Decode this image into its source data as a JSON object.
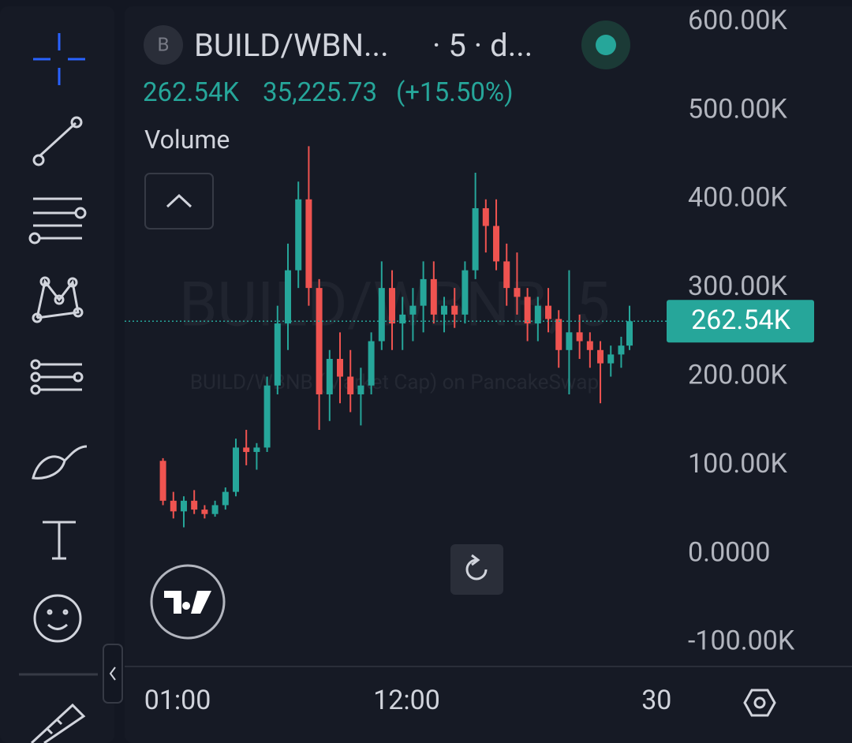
{
  "header": {
    "symbol_badge": "B",
    "symbol": "BUILD/WBN...",
    "interval": "· 5 · d...",
    "price": "262.54K",
    "change": "35,225.73",
    "change_pct": "(+15.50%)",
    "indicator": "Volume"
  },
  "watermark": {
    "title": "BUILD/WBNB, 5",
    "subtitle": "BUILD/WBNB (Market Cap) on PancakeSwap"
  },
  "chart_data": {
    "type": "candlestick",
    "x": [
      0.3,
      0.8,
      1.3,
      1.8,
      2.3,
      2.8,
      3.3,
      3.8,
      4.3,
      4.8,
      5.3,
      5.8,
      6.3,
      6.8,
      7.3,
      7.8,
      8.3,
      8.8,
      9.3,
      9.8,
      10.3,
      10.8,
      11.3,
      11.8,
      12.3,
      12.8,
      13.3,
      13.8,
      14.3,
      14.8,
      15.3,
      15.8,
      16.3,
      16.8,
      17.3,
      17.8,
      18.3,
      18.8,
      19.3,
      19.8,
      20.3,
      20.8,
      21.3,
      21.8,
      22.3,
      22.7
    ],
    "open": [
      105000,
      60000,
      48000,
      60000,
      50000,
      45000,
      55000,
      70000,
      120000,
      115000,
      120000,
      190000,
      260000,
      320000,
      400000,
      300000,
      180000,
      220000,
      200000,
      180000,
      190000,
      240000,
      300000,
      260000,
      270000,
      280000,
      310000,
      270000,
      280000,
      270000,
      320000,
      390000,
      370000,
      330000,
      300000,
      290000,
      260000,
      280000,
      265000,
      230000,
      250000,
      240000,
      230000,
      215000,
      225000,
      235000
    ],
    "high": [
      108000,
      70000,
      65000,
      72000,
      55000,
      60000,
      75000,
      130000,
      140000,
      125000,
      200000,
      280000,
      350000,
      420000,
      460000,
      310000,
      230000,
      250000,
      230000,
      210000,
      250000,
      330000,
      320000,
      290000,
      300000,
      330000,
      330000,
      290000,
      300000,
      330000,
      430000,
      400000,
      400000,
      350000,
      340000,
      300000,
      290000,
      300000,
      275000,
      320000,
      270000,
      250000,
      240000,
      235000,
      245000,
      280000
    ],
    "low": [
      55000,
      40000,
      30000,
      45000,
      40000,
      42000,
      50000,
      65000,
      100000,
      95000,
      115000,
      180000,
      230000,
      300000,
      280000,
      140000,
      150000,
      170000,
      160000,
      145000,
      180000,
      230000,
      230000,
      230000,
      240000,
      250000,
      260000,
      250000,
      255000,
      260000,
      310000,
      340000,
      320000,
      280000,
      270000,
      240000,
      240000,
      250000,
      210000,
      180000,
      220000,
      210000,
      170000,
      200000,
      210000,
      230000
    ],
    "close": [
      60000,
      48000,
      60000,
      50000,
      45000,
      55000,
      70000,
      120000,
      115000,
      120000,
      190000,
      260000,
      320000,
      400000,
      300000,
      180000,
      220000,
      200000,
      180000,
      190000,
      240000,
      300000,
      260000,
      270000,
      280000,
      310000,
      270000,
      280000,
      270000,
      320000,
      390000,
      370000,
      330000,
      300000,
      290000,
      260000,
      280000,
      265000,
      230000,
      250000,
      240000,
      230000,
      215000,
      225000,
      235000,
      262540
    ],
    "up_color": "#26a69a",
    "down_color": "#ef5350",
    "last_price": 262540,
    "last_price_label": "262.54K",
    "xlim": [
      -1.54,
      24.48
    ],
    "ylim": [
      -127000,
      616000
    ],
    "xticks": [
      {
        "value": 1,
        "label": "01:00"
      },
      {
        "value": 12,
        "label": "12:00"
      },
      {
        "value": 24,
        "label": "30"
      }
    ],
    "yticks": [
      {
        "value": 600000,
        "label": "600.00K"
      },
      {
        "value": 500000,
        "label": "500.00K"
      },
      {
        "value": 400000,
        "label": "400.00K"
      },
      {
        "value": 300000,
        "label": "300.00K"
      },
      {
        "value": 200000,
        "label": "200.00K"
      },
      {
        "value": 100000,
        "label": "100.00K"
      },
      {
        "value": 0,
        "label": "0.0000"
      },
      {
        "value": -100000,
        "label": "-100.00K"
      }
    ],
    "grid": true
  }
}
